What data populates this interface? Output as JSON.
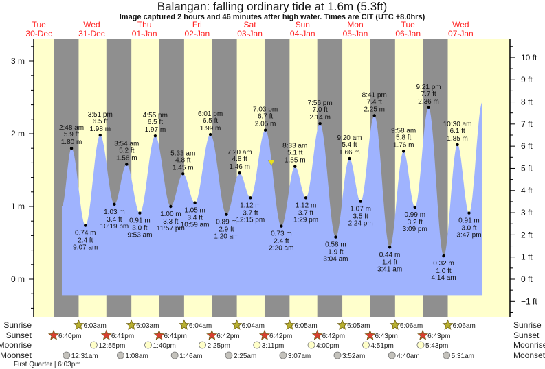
{
  "title": "Balangan: falling  ordinary tide at 1.6m (5.3ft)",
  "subtitle": "Image captured 2 hours and 46 minutes after high water. Times are CIT (UTC +8.0hrs)",
  "colors": {
    "day": "#ffffcc",
    "night": "#8f8f8f",
    "water": "#9fb3fe",
    "day_label": "#ff2020",
    "sunrise": "#b8b030",
    "sunset": "#d84030",
    "moonrise": "#ffffc8",
    "moonset": "#c4c2bc",
    "current_marker": "#e8e020"
  },
  "chart_data": {
    "type": "area",
    "title": "Balangan: falling  ordinary tide at 1.6m (5.3ft)",
    "ylim_m": [
      -0.5,
      3.3
    ],
    "y_ticks_m": [
      "0 m",
      "1 m",
      "2 m",
      "3 m"
    ],
    "y_ticks_ft": [
      "−1 ft",
      "0 ft",
      "1 ft",
      "2 ft",
      "3 ft",
      "4 ft",
      "5 ft",
      "6 ft",
      "7 ft",
      "8 ft",
      "9 ft",
      "10 ft"
    ],
    "days": [
      {
        "dow": "Tue",
        "date": "30-Dec"
      },
      {
        "dow": "Wed",
        "date": "31-Dec"
      },
      {
        "dow": "Thu",
        "date": "01-Jan"
      },
      {
        "dow": "Fri",
        "date": "02-Jan"
      },
      {
        "dow": "Sat",
        "date": "03-Jan"
      },
      {
        "dow": "Sun",
        "date": "04-Jan"
      },
      {
        "dow": "Mon",
        "date": "05-Jan"
      },
      {
        "dow": "Tue",
        "date": "06-Jan"
      },
      {
        "dow": "Wed",
        "date": "07-Jan"
      }
    ],
    "curve_start": {
      "date": "30-Dec",
      "time": "10:24 pm",
      "height_m": 1.0
    },
    "curve_end": {
      "date": "07-Jan",
      "time": "9:54 pm",
      "height_m": 2.44
    },
    "current": {
      "date": "03-Jan",
      "time": "9:49 pm",
      "height_m": 1.6
    },
    "tides": [
      {
        "type": "high",
        "date": "31-Dec",
        "time": "2:48 am",
        "m": "1.80 m",
        "ft": "5.9 ft",
        "height_m": 1.8
      },
      {
        "type": "low",
        "date": "31-Dec",
        "time": "9:07 am",
        "m": "0.74 m",
        "ft": "2.4 ft",
        "height_m": 0.74
      },
      {
        "type": "high",
        "date": "31-Dec",
        "time": "3:51 pm",
        "m": "1.98 m",
        "ft": "6.5 ft",
        "height_m": 1.98
      },
      {
        "type": "low",
        "date": "31-Dec",
        "time": "10:19 pm",
        "m": "1.03 m",
        "ft": "3.4 ft",
        "height_m": 1.03
      },
      {
        "type": "high",
        "date": "01-Jan",
        "time": "3:54 am",
        "m": "1.58 m",
        "ft": "5.2 ft",
        "height_m": 1.58
      },
      {
        "type": "low",
        "date": "01-Jan",
        "time": "9:53 am",
        "m": "0.91 m",
        "ft": "3.0 ft",
        "height_m": 0.91
      },
      {
        "type": "high",
        "date": "01-Jan",
        "time": "4:55 pm",
        "m": "1.97 m",
        "ft": "6.5 ft",
        "height_m": 1.97
      },
      {
        "type": "low",
        "date": "01-Jan",
        "time": "11:57 pm",
        "m": "1.00 m",
        "ft": "3.3 ft",
        "height_m": 1.0
      },
      {
        "type": "high",
        "date": "02-Jan",
        "time": "5:33 am",
        "m": "1.45 m",
        "ft": "4.8 ft",
        "height_m": 1.45
      },
      {
        "type": "low",
        "date": "02-Jan",
        "time": "10:59 am",
        "m": "1.05 m",
        "ft": "3.4 ft",
        "height_m": 1.05
      },
      {
        "type": "high",
        "date": "02-Jan",
        "time": "6:01 pm",
        "m": "1.99 m",
        "ft": "6.5 ft",
        "height_m": 1.99
      },
      {
        "type": "low",
        "date": "03-Jan",
        "time": "1:20 am",
        "m": "0.89 m",
        "ft": "2.9 ft",
        "height_m": 0.89
      },
      {
        "type": "high",
        "date": "03-Jan",
        "time": "7:20 am",
        "m": "1.46 m",
        "ft": "4.8 ft",
        "height_m": 1.46
      },
      {
        "type": "low",
        "date": "03-Jan",
        "time": "12:15 pm",
        "m": "1.12 m",
        "ft": "3.7 ft",
        "height_m": 1.12
      },
      {
        "type": "high",
        "date": "03-Jan",
        "time": "7:03 pm",
        "m": "2.05 m",
        "ft": "6.7 ft",
        "height_m": 2.05
      },
      {
        "type": "low",
        "date": "04-Jan",
        "time": "2:20 am",
        "m": "0.73 m",
        "ft": "2.4 ft",
        "height_m": 0.73
      },
      {
        "type": "high",
        "date": "04-Jan",
        "time": "8:33 am",
        "m": "1.55 m",
        "ft": "5.1 ft",
        "height_m": 1.55
      },
      {
        "type": "low",
        "date": "04-Jan",
        "time": "1:29 pm",
        "m": "1.12 m",
        "ft": "3.7 ft",
        "height_m": 1.12
      },
      {
        "type": "high",
        "date": "04-Jan",
        "time": "7:56 pm",
        "m": "2.14 m",
        "ft": "7.0 ft",
        "height_m": 2.14
      },
      {
        "type": "low",
        "date": "05-Jan",
        "time": "3:04 am",
        "m": "0.58 m",
        "ft": "1.9 ft",
        "height_m": 0.58
      },
      {
        "type": "high",
        "date": "05-Jan",
        "time": "9:20 am",
        "m": "1.66 m",
        "ft": "5.4 ft",
        "height_m": 1.66
      },
      {
        "type": "low",
        "date": "05-Jan",
        "time": "2:24 pm",
        "m": "1.07 m",
        "ft": "3.5 ft",
        "height_m": 1.07
      },
      {
        "type": "high",
        "date": "05-Jan",
        "time": "8:41 pm",
        "m": "2.25 m",
        "ft": "7.4 ft",
        "height_m": 2.25
      },
      {
        "type": "low",
        "date": "06-Jan",
        "time": "3:41 am",
        "m": "0.44 m",
        "ft": "1.4 ft",
        "height_m": 0.44
      },
      {
        "type": "high",
        "date": "06-Jan",
        "time": "9:58 am",
        "m": "1.76 m",
        "ft": "5.8 ft",
        "height_m": 1.76
      },
      {
        "type": "low",
        "date": "06-Jan",
        "time": "3:09 pm",
        "m": "0.99 m",
        "ft": "3.2 ft",
        "height_m": 0.99
      },
      {
        "type": "high",
        "date": "06-Jan",
        "time": "9:21 pm",
        "m": "2.36 m",
        "ft": "7.7 ft",
        "height_m": 2.36
      },
      {
        "type": "low",
        "date": "07-Jan",
        "time": "4:14 am",
        "m": "0.32 m",
        "ft": "1.0 ft",
        "height_m": 0.32
      },
      {
        "type": "high",
        "date": "07-Jan",
        "time": "10:30 am",
        "m": "1.85 m",
        "ft": "6.1 ft",
        "height_m": 1.85
      },
      {
        "type": "low",
        "date": "07-Jan",
        "time": "3:47 pm",
        "m": "0.91 m",
        "ft": "3.0 ft",
        "height_m": 0.91
      }
    ]
  },
  "astro": {
    "labels": {
      "sunrise": "Sunrise",
      "sunset": "Sunset",
      "moonrise": "Moonrise",
      "moonset": "Moonset"
    },
    "sunrise": [
      {
        "date": "31-Dec",
        "time": "6:03am"
      },
      {
        "date": "01-Jan",
        "time": "6:03am"
      },
      {
        "date": "02-Jan",
        "time": "6:04am"
      },
      {
        "date": "03-Jan",
        "time": "6:04am"
      },
      {
        "date": "04-Jan",
        "time": "6:05am"
      },
      {
        "date": "05-Jan",
        "time": "6:05am"
      },
      {
        "date": "06-Jan",
        "time": "6:06am"
      },
      {
        "date": "07-Jan",
        "time": "6:06am"
      }
    ],
    "sunset": [
      {
        "date": "30-Dec",
        "time": "6:40pm"
      },
      {
        "date": "31-Dec",
        "time": "6:41pm"
      },
      {
        "date": "01-Jan",
        "time": "6:41pm"
      },
      {
        "date": "02-Jan",
        "time": "6:42pm"
      },
      {
        "date": "03-Jan",
        "time": "6:42pm"
      },
      {
        "date": "04-Jan",
        "time": "6:42pm"
      },
      {
        "date": "05-Jan",
        "time": "6:43pm"
      },
      {
        "date": "06-Jan",
        "time": "6:43pm"
      }
    ],
    "moonrise": [
      {
        "date": "31-Dec",
        "time": "12:55pm"
      },
      {
        "date": "01-Jan",
        "time": "1:40pm"
      },
      {
        "date": "02-Jan",
        "time": "2:25pm"
      },
      {
        "date": "03-Jan",
        "time": "3:11pm"
      },
      {
        "date": "04-Jan",
        "time": "4:00pm"
      },
      {
        "date": "05-Jan",
        "time": "4:51pm"
      },
      {
        "date": "06-Jan",
        "time": "5:43pm"
      }
    ],
    "moonset": [
      {
        "date": "31-Dec",
        "time": "12:31am"
      },
      {
        "date": "01-Jan",
        "time": "1:08am"
      },
      {
        "date": "02-Jan",
        "time": "1:46am"
      },
      {
        "date": "03-Jan",
        "time": "2:25am"
      },
      {
        "date": "04-Jan",
        "time": "3:07am"
      },
      {
        "date": "05-Jan",
        "time": "3:52am"
      },
      {
        "date": "06-Jan",
        "time": "4:40am"
      },
      {
        "date": "07-Jan",
        "time": "5:31am"
      }
    ],
    "moon_phase": "First Quarter | 6:03pm"
  }
}
